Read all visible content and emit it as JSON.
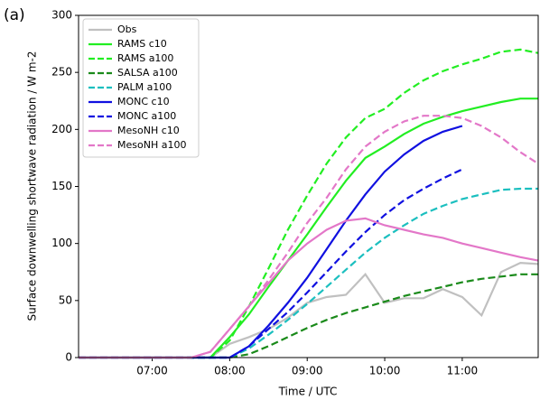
{
  "chart_data": {
    "type": "line",
    "panel_label": "(a)",
    "xlabel": "Time / UTC",
    "ylabel": "Surface downwelling shortwave radiation / W m-2",
    "x": [
      6.05,
      7,
      7.5,
      7.75,
      8,
      8.25,
      8.5,
      8.75,
      9,
      9.25,
      9.5,
      9.75,
      10,
      10.25,
      10.5,
      10.75,
      11,
      11.25,
      11.5,
      11.75,
      11.98
    ],
    "xlim": [
      6.05,
      11.98
    ],
    "xticks": [
      {
        "value": 7,
        "label": "07:00"
      },
      {
        "value": 8,
        "label": "08:00"
      },
      {
        "value": 9,
        "label": "09:00"
      },
      {
        "value": 10,
        "label": "10:00"
      },
      {
        "value": 11,
        "label": "11:00"
      }
    ],
    "ylim": [
      0,
      300
    ],
    "yticks": [
      0,
      50,
      100,
      150,
      200,
      250,
      300
    ],
    "grid": false,
    "legend": "upper left",
    "series": [
      {
        "name": "Obs",
        "color": "#c0c0c0",
        "linestyle": "solid",
        "values": [
          0,
          0,
          0,
          0,
          12,
          18,
          25,
          35,
          48,
          53,
          55,
          73,
          48,
          52,
          52,
          60,
          53,
          37,
          75,
          83,
          82
        ]
      },
      {
        "name": "RAMS c10",
        "color": "#22ee22",
        "linestyle": "solid",
        "values": [
          0,
          0,
          0,
          0,
          18,
          38,
          62,
          85,
          108,
          132,
          155,
          175,
          185,
          196,
          205,
          211,
          216,
          220,
          224,
          227,
          227
        ]
      },
      {
        "name": "RAMS a100",
        "color": "#22ee22",
        "linestyle": "dashed",
        "values": [
          0,
          0,
          0,
          0,
          15,
          45,
          78,
          112,
          142,
          170,
          193,
          210,
          218,
          232,
          243,
          251,
          257,
          262,
          268,
          270,
          267
        ]
      },
      {
        "name": "SALSA a100",
        "color": "#1a8a1a",
        "linestyle": "dashed",
        "values": [
          0,
          0,
          0,
          0,
          0,
          3,
          10,
          18,
          26,
          33,
          39,
          44,
          49,
          54,
          58,
          62,
          66,
          69,
          71,
          73,
          73
        ]
      },
      {
        "name": "PALM a100",
        "color": "#1bbfbf",
        "linestyle": "dashed",
        "values": [
          0,
          0,
          0,
          0,
          0,
          8,
          20,
          33,
          47,
          62,
          77,
          92,
          105,
          116,
          126,
          133,
          139,
          143,
          147,
          148,
          148
        ]
      },
      {
        "name": "MONC c10",
        "color": "#1010e0",
        "linestyle": "solid",
        "values": [
          0,
          0,
          0,
          0,
          0,
          10,
          28,
          48,
          70,
          95,
          120,
          143,
          163,
          178,
          190,
          198,
          203,
          null,
          null,
          null,
          null
        ]
      },
      {
        "name": "MONC a100",
        "color": "#1010e0",
        "linestyle": "dashed",
        "values": [
          0,
          0,
          0,
          0,
          0,
          10,
          25,
          40,
          57,
          75,
          93,
          110,
          125,
          138,
          148,
          157,
          165,
          null,
          null,
          null,
          null
        ]
      },
      {
        "name": "MesoNH c10",
        "color": "#e377c8",
        "linestyle": "solid",
        "values": [
          0,
          0,
          0,
          5,
          25,
          45,
          65,
          85,
          100,
          112,
          120,
          122,
          116,
          112,
          108,
          105,
          100,
          96,
          92,
          88,
          85
        ]
      },
      {
        "name": "MesoNH a100",
        "color": "#e377c8",
        "linestyle": "dashed",
        "values": [
          0,
          0,
          0,
          5,
          25,
          45,
          68,
          92,
          118,
          140,
          165,
          185,
          198,
          207,
          212,
          212,
          210,
          203,
          193,
          180,
          170
        ]
      }
    ]
  }
}
